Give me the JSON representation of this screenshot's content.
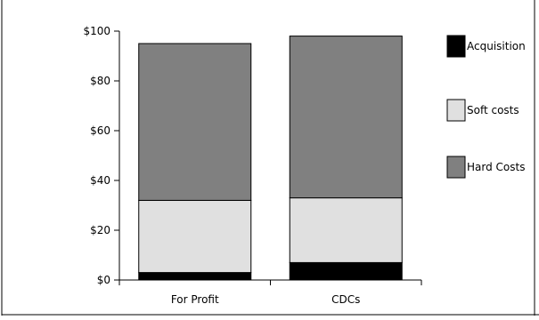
{
  "chart_data": {
    "type": "bar",
    "stacked": true,
    "categories": [
      "For Profit",
      "CDCs"
    ],
    "series": [
      {
        "name": "Acquisition",
        "values": [
          3,
          7
        ],
        "color": "#000000"
      },
      {
        "name": "Soft costs",
        "values": [
          29,
          26
        ],
        "color": "#e0e0e0"
      },
      {
        "name": "Hard Costs",
        "values": [
          63,
          65
        ],
        "color": "#808080"
      }
    ],
    "ylim": [
      0,
      100
    ],
    "yticks": [
      0,
      20,
      40,
      60,
      80,
      100
    ],
    "ytick_labels": [
      "$0",
      "$20",
      "$40",
      "$60",
      "$80",
      "$100"
    ],
    "legend_order": [
      "Acquisition",
      "Soft costs",
      "Hard Costs"
    ],
    "legend_position": "right",
    "grid": false
  }
}
